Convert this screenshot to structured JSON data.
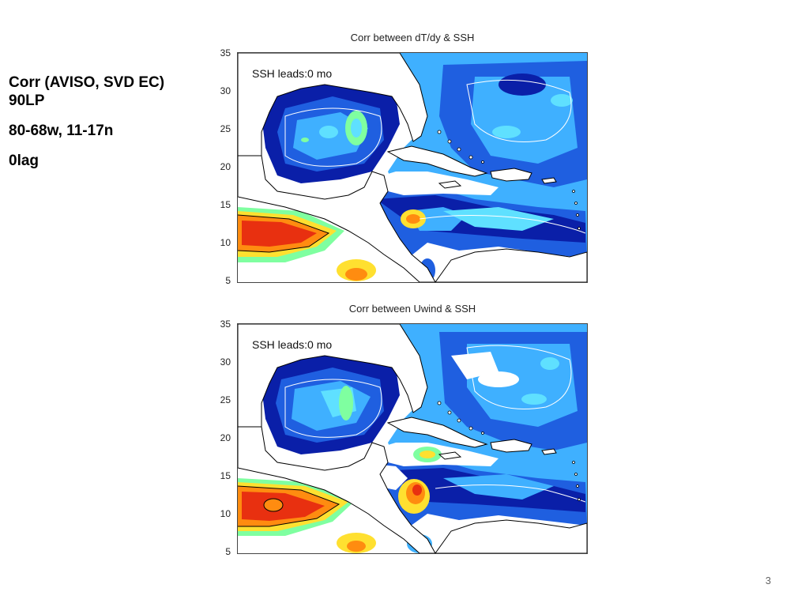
{
  "notes": {
    "line1": "Corr (AVISO, SVD EC)",
    "line2": "90LP",
    "line3": "80-68w, 11-17n",
    "line4": "0lag"
  },
  "panels": [
    {
      "title": "Corr between dT/dy & SSH",
      "lead_label": "SSH leads:0 mo",
      "y_ticks": [
        "35",
        "30",
        "25",
        "20",
        "15",
        "10",
        "5"
      ]
    },
    {
      "title": "Corr between Uwind & SSH",
      "lead_label": "SSH leads:0 mo",
      "y_ticks": [
        "35",
        "30",
        "25",
        "20",
        "15",
        "10",
        "5"
      ]
    }
  ],
  "slide_number": "3",
  "colors": {
    "deep_blue": "#0a1fa8",
    "mid_blue": "#1f5fe0",
    "light_blue": "#3fb0ff",
    "cyan": "#5fe0ff",
    "green": "#7fffa0",
    "yellow": "#ffe030",
    "orange": "#ff8c10",
    "red": "#e83010",
    "coast": "#000000",
    "land": "#ffffff"
  }
}
